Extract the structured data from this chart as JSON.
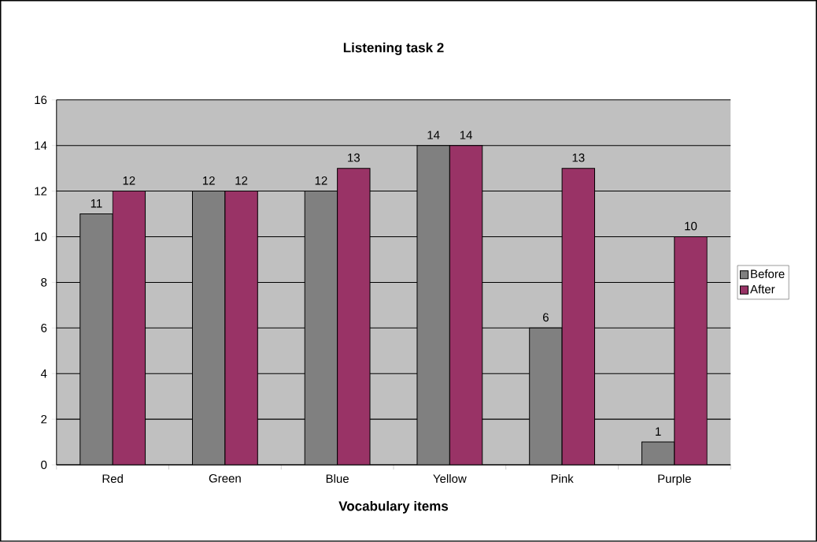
{
  "chart_data": {
    "type": "bar",
    "title": "Listening task 2",
    "xlabel": "Vocabulary items",
    "categories": [
      "Red",
      "Green",
      "Blue",
      "Yellow",
      "Pink",
      "Purple"
    ],
    "series": [
      {
        "name": "Before",
        "color": "#808080",
        "values": [
          11,
          12,
          12,
          14,
          6,
          1
        ]
      },
      {
        "name": "After",
        "color": "#993366",
        "values": [
          12,
          12,
          13,
          14,
          13,
          10
        ]
      }
    ],
    "ylim": [
      0,
      16
    ],
    "yticks": [
      0,
      2,
      4,
      6,
      8,
      10,
      12,
      14,
      16
    ],
    "grid": "y",
    "legend": "right",
    "data_labels": true
  }
}
